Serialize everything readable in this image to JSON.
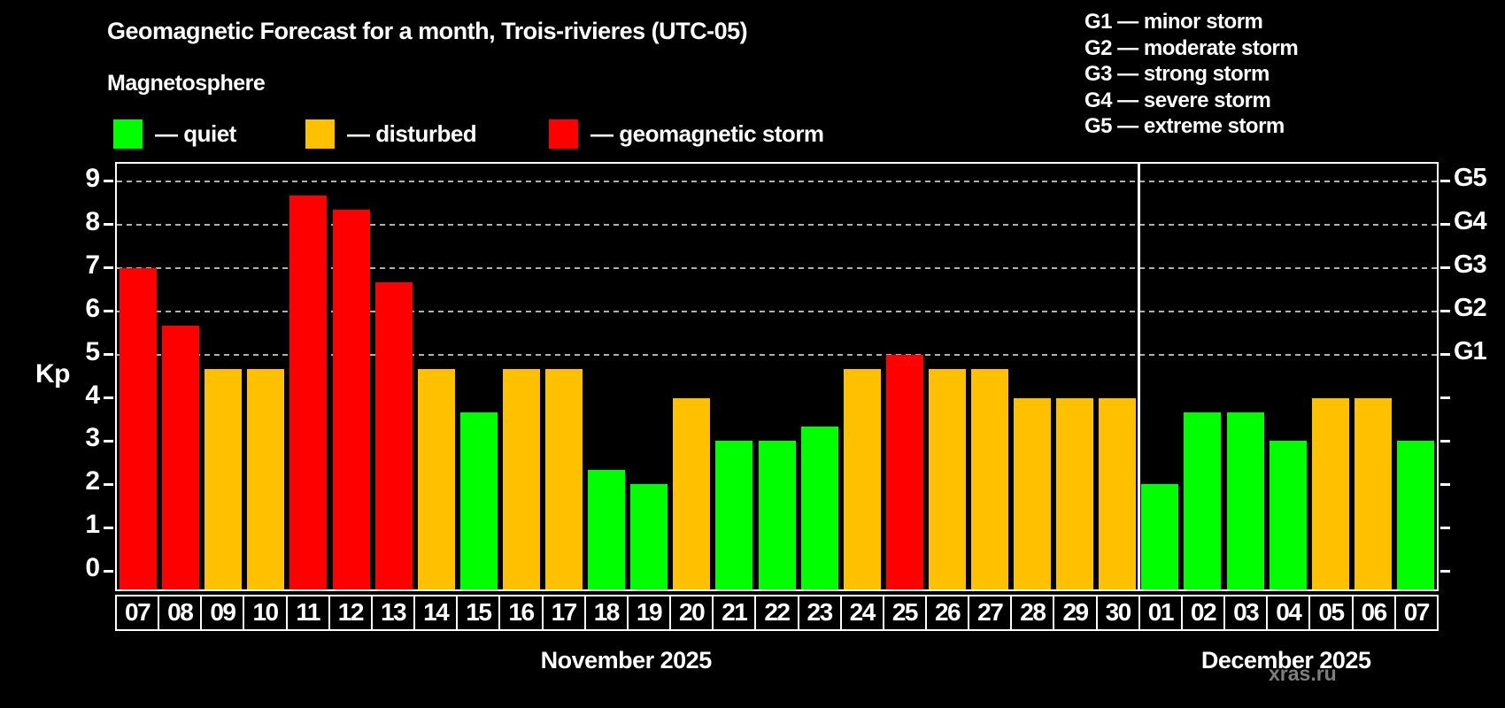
{
  "title": "Geomagnetic Forecast for a month, Trois-rivieres (UTC-05)",
  "subtitle": "Magnetosphere",
  "magnetosphere_legend": [
    {
      "name": "quiet",
      "label": "— quiet",
      "color": "#00ff00"
    },
    {
      "name": "disturbed",
      "label": "— disturbed",
      "color": "#ffc000"
    },
    {
      "name": "storm",
      "label": "— geomagnetic storm",
      "color": "#ff0000"
    }
  ],
  "storm_scale_legend": [
    "G1 — minor storm",
    "G2 — moderate storm",
    "G3 — strong storm",
    "G4 — severe storm",
    "G5 — extreme storm"
  ],
  "watermark": "xras.ru",
  "chart_data": {
    "type": "bar",
    "title": "Geomagnetic Forecast for a month, Trois-rivieres (UTC-05)",
    "ylabel": "Kp",
    "ylim": [
      -0.42,
      9.4
    ],
    "y_ticks": [
      0,
      1,
      2,
      3,
      4,
      5,
      6,
      7,
      8,
      9
    ],
    "gridlines_at": [
      5,
      6,
      7,
      8,
      9
    ],
    "grid_style": "dashed horizontal, behind bars",
    "right_axis": [
      {
        "kp": 5,
        "label": "G1"
      },
      {
        "kp": 6,
        "label": "G2"
      },
      {
        "kp": 7,
        "label": "G3"
      },
      {
        "kp": 8,
        "label": "G4"
      },
      {
        "kp": 9,
        "label": "G5"
      }
    ],
    "months": [
      {
        "label": "November 2025",
        "start_index": 0,
        "days": 24
      },
      {
        "label": "December 2025",
        "start_index": 24,
        "days": 7
      }
    ],
    "categories": [
      "07",
      "08",
      "09",
      "10",
      "11",
      "12",
      "13",
      "14",
      "15",
      "16",
      "17",
      "18",
      "19",
      "20",
      "21",
      "22",
      "23",
      "24",
      "25",
      "26",
      "27",
      "28",
      "29",
      "30",
      "01",
      "02",
      "03",
      "04",
      "05",
      "06",
      "07"
    ],
    "values": [
      7.0,
      5.67,
      4.67,
      4.67,
      8.67,
      8.33,
      6.67,
      4.67,
      3.67,
      4.67,
      4.67,
      2.33,
      2.0,
      4.0,
      3.0,
      3.0,
      3.33,
      4.67,
      5.0,
      4.67,
      4.67,
      4.0,
      4.0,
      4.0,
      2.0,
      3.67,
      3.67,
      3.0,
      4.0,
      4.0,
      3.0
    ],
    "statuses": [
      "storm",
      "storm",
      "disturbed",
      "disturbed",
      "storm",
      "storm",
      "storm",
      "disturbed",
      "quiet",
      "disturbed",
      "disturbed",
      "quiet",
      "quiet",
      "disturbed",
      "quiet",
      "quiet",
      "quiet",
      "disturbed",
      "storm",
      "disturbed",
      "disturbed",
      "disturbed",
      "disturbed",
      "disturbed",
      "quiet",
      "quiet",
      "quiet",
      "quiet",
      "disturbed",
      "disturbed",
      "quiet"
    ],
    "colors": {
      "quiet": "#00ff00",
      "disturbed": "#ffc000",
      "storm": "#ff0000"
    }
  }
}
